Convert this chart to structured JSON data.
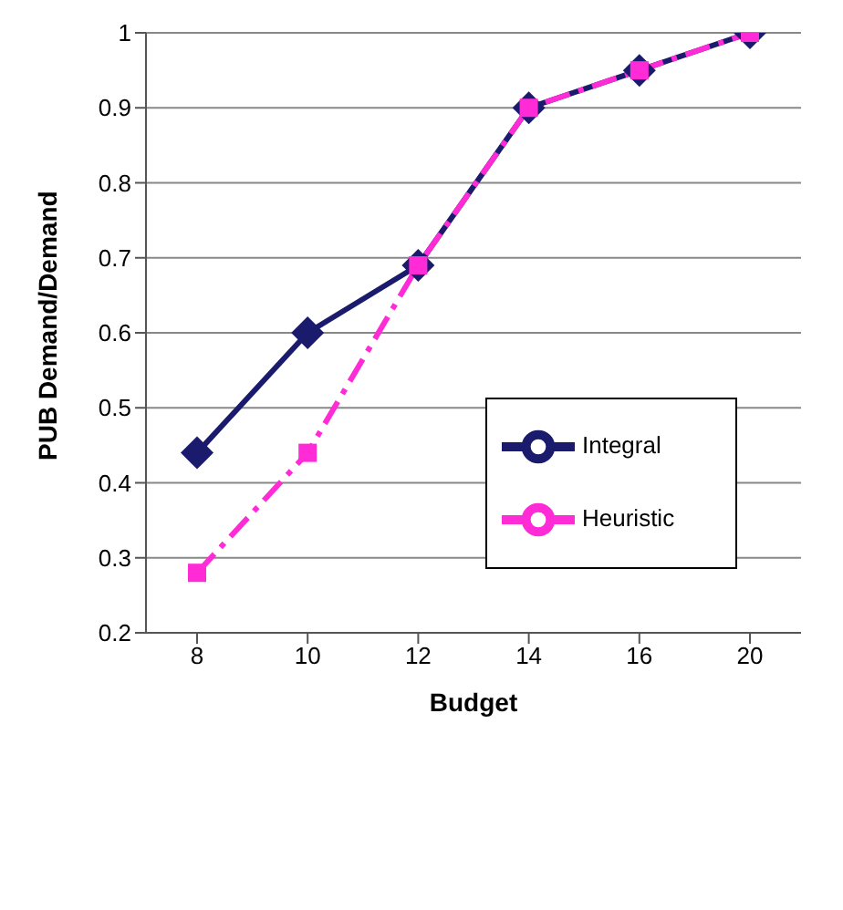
{
  "chart_data": {
    "type": "line",
    "xlabel": "Budget",
    "ylabel": "PUB Demand/Demand",
    "categories": [
      "8",
      "10",
      "12",
      "14",
      "16",
      "20"
    ],
    "series": [
      {
        "name": "Integral",
        "color": "#1b1b6e",
        "values": [
          0.44,
          0.6,
          0.69,
          0.9,
          0.95,
          1.0
        ],
        "marker": "diamond",
        "line_style": "solid"
      },
      {
        "name": "Heuristic",
        "color": "#ff2bd6",
        "values": [
          0.28,
          0.44,
          0.69,
          0.9,
          0.95,
          1.0
        ],
        "marker": "square",
        "line_style": "dashed"
      }
    ],
    "ylim": [
      0.2,
      1
    ],
    "yticks": [
      0.2,
      0.3,
      0.4,
      0.5,
      0.6,
      0.7,
      0.8,
      0.9,
      1
    ],
    "grid": "y",
    "legend": "right"
  }
}
